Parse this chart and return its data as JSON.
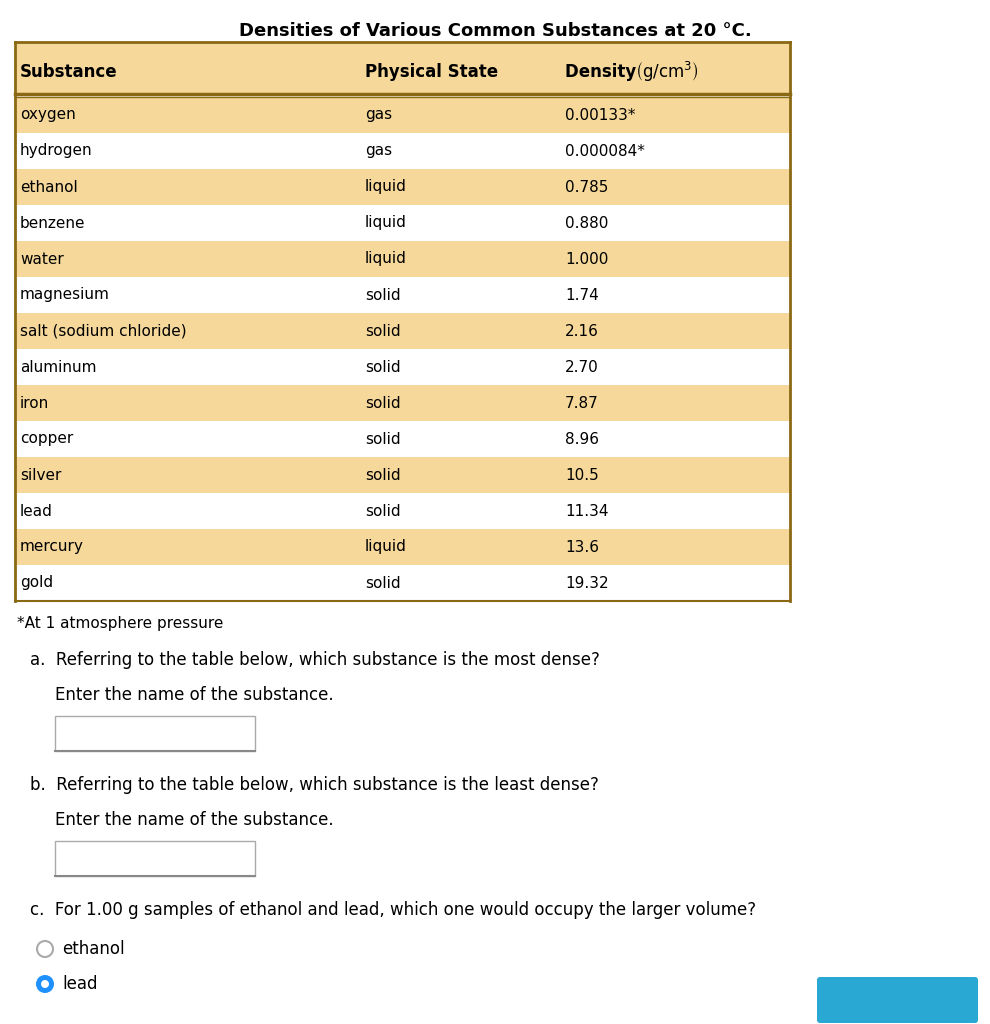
{
  "title": "Densities of Various Common Substances at 20 °C.",
  "header": [
    "Substance",
    "Physical State",
    "Density (g/cm³)"
  ],
  "rows": [
    [
      "oxygen",
      "gas",
      "0.00133*"
    ],
    [
      "hydrogen",
      "gas",
      "0.000084*"
    ],
    [
      "ethanol",
      "liquid",
      "0.785"
    ],
    [
      "benzene",
      "liquid",
      "0.880"
    ],
    [
      "water",
      "liquid",
      "1.000"
    ],
    [
      "magnesium",
      "solid",
      "1.74"
    ],
    [
      "salt (sodium chloride)",
      "solid",
      "2.16"
    ],
    [
      "aluminum",
      "solid",
      "2.70"
    ],
    [
      "iron",
      "solid",
      "7.87"
    ],
    [
      "copper",
      "solid",
      "8.96"
    ],
    [
      "silver",
      "solid",
      "10.5"
    ],
    [
      "lead",
      "solid",
      "11.34"
    ],
    [
      "mercury",
      "liquid",
      "13.6"
    ],
    [
      "gold",
      "solid",
      "19.32"
    ]
  ],
  "highlighted_rows": [
    0,
    2,
    4,
    6,
    8,
    10,
    12
  ],
  "highlight_color": "#f5d89a",
  "white_color": "#ffffff",
  "header_bg": "#f5d89a",
  "border_color": "#8B6914",
  "footnote": "*At 1 atmosphere pressure",
  "question_a": "a.  Referring to the table below, which substance is the most dense?",
  "question_a_sub": "Enter the name of the substance.",
  "question_b": "b.  Referring to the table below, which substance is the least dense?",
  "question_b_sub": "Enter the name of the substance.",
  "question_c": "c.  For 1.00 g samples of ethanol and lead, which one would occupy the larger volume?",
  "option_ethanol": "ethanol",
  "option_lead": "lead",
  "radio_lead_color": "#1E90FF",
  "bg_color": "#ffffff",
  "fig_width": 9.9,
  "fig_height": 10.24
}
